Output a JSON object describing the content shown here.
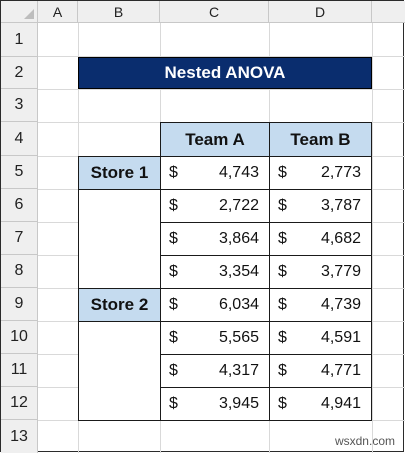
{
  "columns": [
    "A",
    "B",
    "C",
    "D"
  ],
  "rows": [
    "1",
    "2",
    "3",
    "4",
    "5",
    "6",
    "7",
    "8",
    "9",
    "10",
    "11",
    "12",
    "13"
  ],
  "title": "Nested ANOVA",
  "headers": [
    "Team A",
    "Team B"
  ],
  "currency": "$",
  "stores": [
    {
      "label": "Store 1",
      "values": [
        [
          "4,743",
          "2,773"
        ],
        [
          "2,722",
          "3,787"
        ],
        [
          "3,864",
          "4,682"
        ],
        [
          "3,354",
          "3,779"
        ]
      ]
    },
    {
      "label": "Store 2",
      "values": [
        [
          "6,034",
          "4,739"
        ],
        [
          "5,565",
          "4,591"
        ],
        [
          "4,317",
          "4,771"
        ],
        [
          "3,945",
          "4,941"
        ]
      ]
    }
  ],
  "watermark": "wsxdn.com"
}
